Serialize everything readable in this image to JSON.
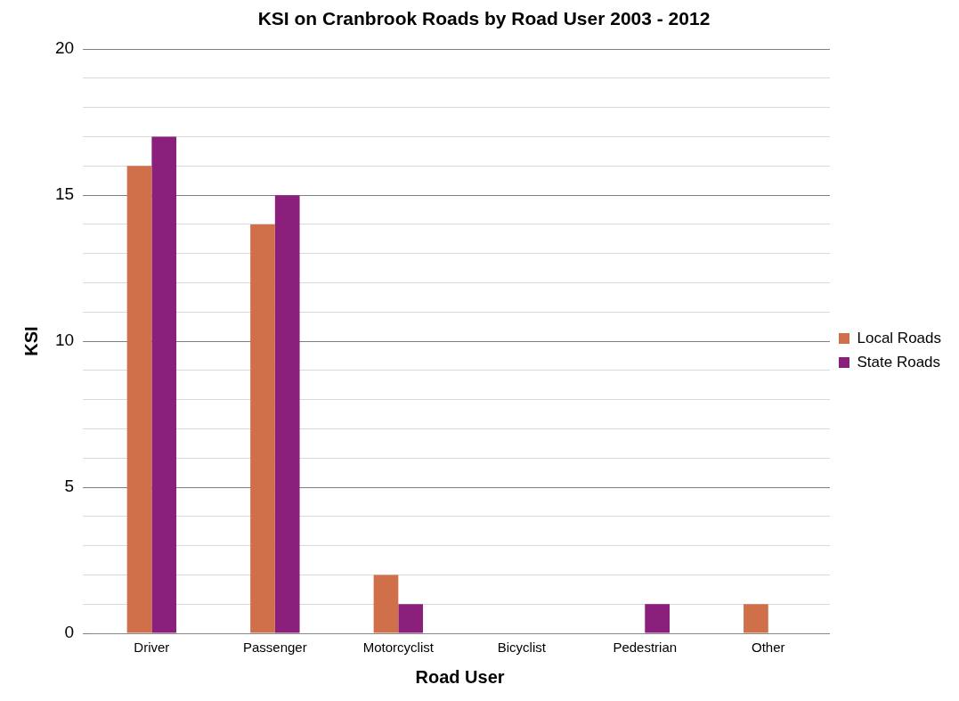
{
  "chart_data": {
    "type": "bar",
    "title": "KSI on Cranbrook Roads by Road User 2003 - 2012",
    "xlabel": "Road User",
    "ylabel": "KSI",
    "categories": [
      "Driver",
      "Passenger",
      "Motorcyclist",
      "Bicyclist",
      "Pedestrian",
      "Other"
    ],
    "series": [
      {
        "name": "Local Roads",
        "color": "#d0704b",
        "values": [
          16,
          14,
          2,
          0,
          0,
          1
        ]
      },
      {
        "name": "State Roads",
        "color": "#8b1f7c",
        "values": [
          17,
          15,
          1,
          0,
          1,
          0
        ]
      }
    ],
    "ylim": [
      0,
      20
    ],
    "yticks": [
      0,
      {
        "value": 1,
        "label": null
      },
      {
        "value": 2,
        "label": null
      },
      {
        "value": 3,
        "label": null
      },
      {
        "value": 4,
        "label": null
      },
      5,
      {
        "value": 6,
        "label": null
      },
      {
        "value": 7,
        "label": null
      },
      {
        "value": 8,
        "label": null
      },
      {
        "value": 9,
        "label": null
      },
      10,
      {
        "value": 11,
        "label": null
      },
      {
        "value": 12,
        "label": null
      },
      {
        "value": 13,
        "label": null
      },
      {
        "value": 14,
        "label": null
      },
      15,
      {
        "value": 16,
        "label": null
      },
      {
        "value": 17,
        "label": null
      },
      {
        "value": 18,
        "label": null
      },
      {
        "value": 19,
        "label": null
      },
      20
    ],
    "grid": "y",
    "legend": "right"
  }
}
